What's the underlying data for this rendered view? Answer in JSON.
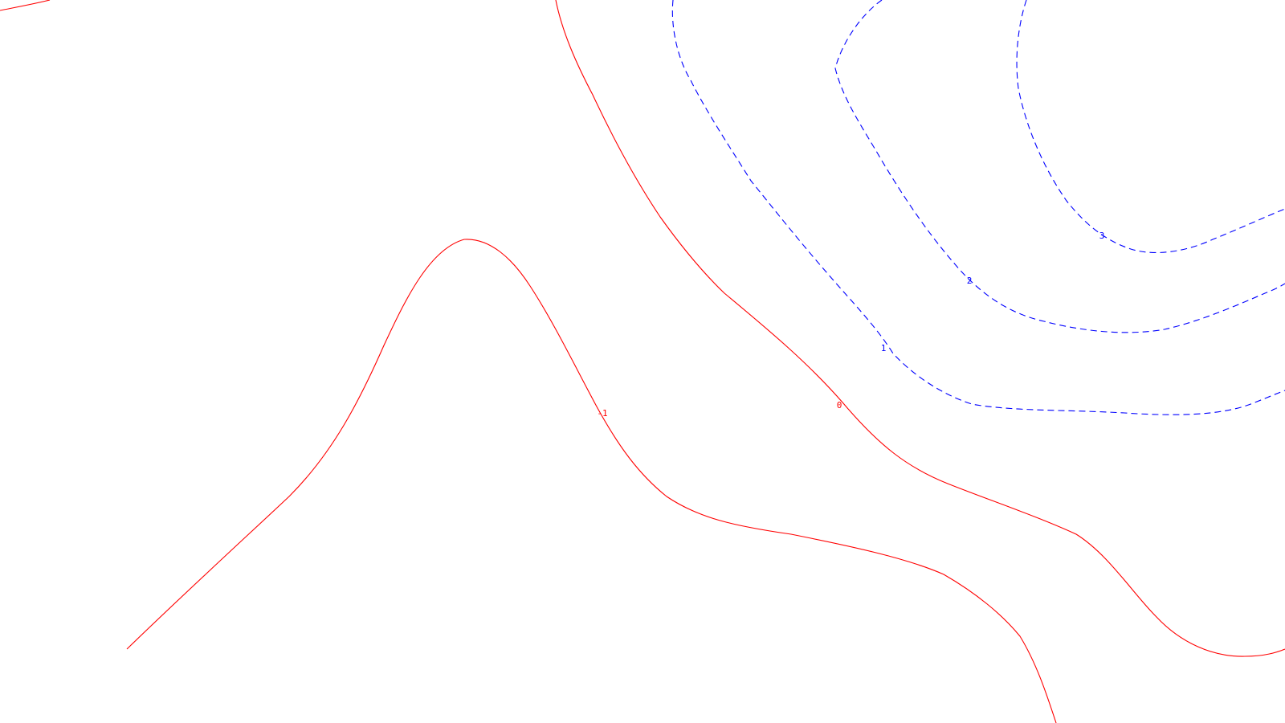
{
  "chart_data": {
    "type": "contour",
    "title": "",
    "xlabel": "",
    "ylabel": "",
    "grid": false,
    "legend": "none",
    "colors": {
      "negative_zero": "#ff0000",
      "positive": "#0000ff",
      "background": "#ffffff"
    },
    "levels": [
      {
        "value": -1,
        "label": "-1",
        "style": "solid",
        "color": "#ff0000"
      },
      {
        "value": 0,
        "label": "0",
        "style": "solid",
        "color": "#ff0000"
      },
      {
        "value": 1,
        "label": "1",
        "style": "dashed",
        "color": "#0000ff"
      },
      {
        "value": 2,
        "label": "2",
        "style": "dashed",
        "color": "#0000ff"
      },
      {
        "value": 3,
        "label": "3",
        "style": "dashed",
        "color": "#0000ff"
      }
    ]
  }
}
